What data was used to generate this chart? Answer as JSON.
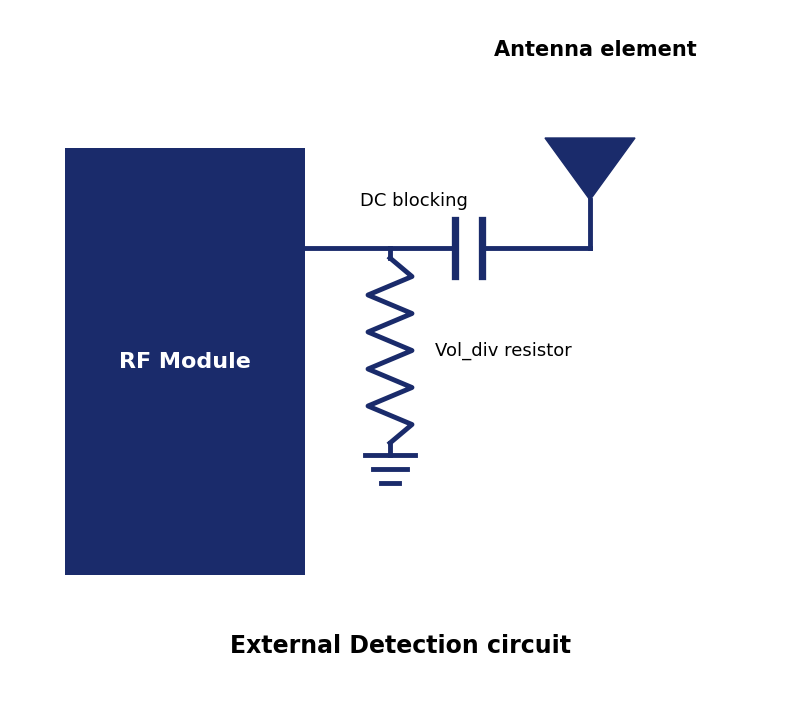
{
  "background_color": "#ffffff",
  "circuit_color": "#1a2b6b",
  "title": "External Detection circuit",
  "title_fontsize": 17,
  "title_fontweight": "bold",
  "antenna_label": "Antenna element",
  "antenna_label_fontsize": 15,
  "antenna_label_fontweight": "bold",
  "dc_blocking_label": "DC blocking",
  "dc_blocking_fontsize": 13,
  "vol_div_label": "Vol_div resistor",
  "vol_div_fontsize": 13,
  "rf_module_label": "RF Module",
  "rf_module_fontsize": 16,
  "rf_module_fontweight": "bold",
  "line_width": 3.5
}
